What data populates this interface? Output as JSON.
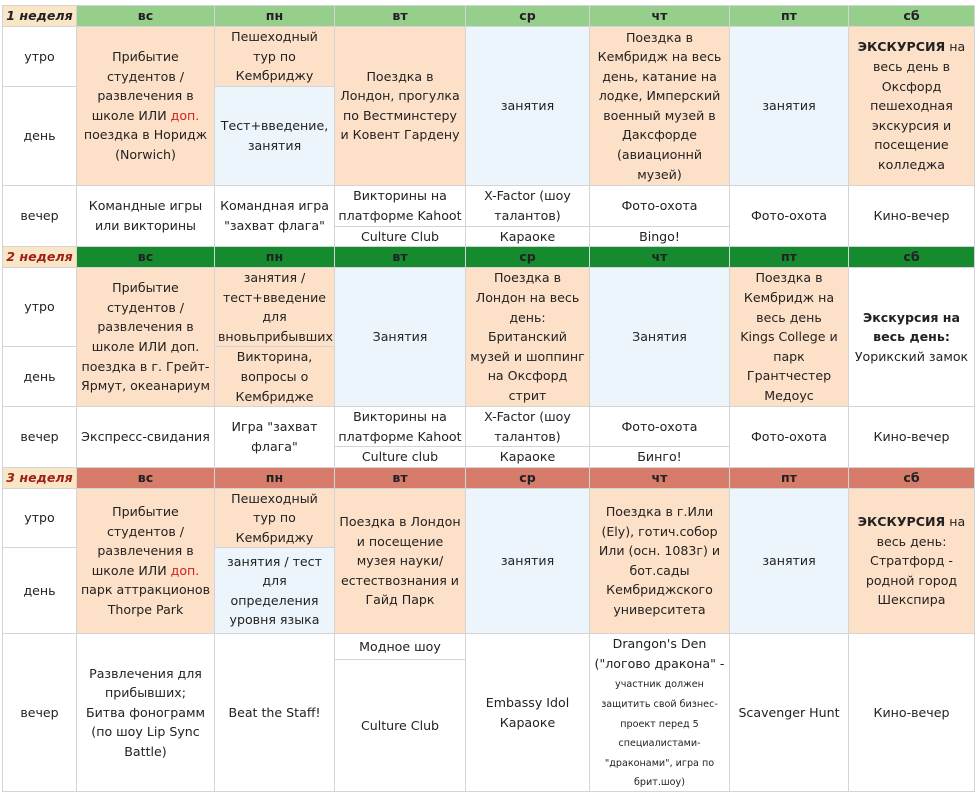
{
  "days": [
    "вс",
    "пн",
    "вт",
    "ср",
    "чт",
    "пт",
    "сб"
  ],
  "slots": {
    "morning": "утро",
    "day": "день",
    "evening": "вечер"
  },
  "weeks": [
    {
      "label": "1 неделя",
      "arrival_pre": "Прибытие студентов / развлечения в школе ИЛИ ",
      "arrival_red": "доп.",
      "arrival_post": " поездка в Норидж (Norwich)",
      "mon_morning": "Пешеходный тур по Кембриджу",
      "mon_day": "Тест+введение, занятия",
      "tue": "Поездка в Лондон, прогулка по Вестминстеру и Ковент Гардену",
      "wed": "занятия",
      "thu": "Поездка в Кембридж на весь день, катание на лодке, Имперский военный музей в Даксфорде (авиационнй музей)",
      "fri": "занятия",
      "sat_bold": "ЭКСКУРСИЯ",
      "sat_rest": " на весь день в Оксфорд пешеходная экскурсия и посещение колледжа",
      "ev_sun": "Командные игры или викторины",
      "ev_mon": "Командная игра \"захват флага\"",
      "ev_tue_1": "Викторины на платформе Kahoot",
      "ev_tue_2": "Culture Club",
      "ev_wed_1": "X-Factor (шоу талантов)",
      "ev_wed_2": "Караоке",
      "ev_thu_1": "Фото-охота",
      "ev_thu_2": "Bingo!",
      "ev_fri": "Фото-охота",
      "ev_sat": "Кино-вечер"
    },
    {
      "label": "2 неделя",
      "arrival": "Прибытие студентов / развлечения в школе ИЛИ доп. поездка в г. Грейт-Ярмут, океанариум",
      "mon_morning": "занятия / тест+введение для вновьприбывших",
      "mon_day": "Викторина, вопросы о Кембридже",
      "tue": "Занятия",
      "wed": "Поездка в Лондон на весь день: Британский музей и шоппинг на Оксфорд стрит",
      "thu": "Занятия",
      "fri_1": "Поездка в Кембридж на весь день",
      "fri_2": "Kings College и парк Грантчестер Медоус",
      "sat_bold": "Экскурсия на весь день:",
      "sat_rest": " Уорикский замок",
      "ev_sun": "Экспресс-свидания",
      "ev_mon": "Игра \"захват флага\"",
      "ev_tue_1": "Викторины на платформе Kahoot",
      "ev_tue_2": "Culture club",
      "ev_wed_1": "X-Factor (шоу талантов)",
      "ev_wed_2": "Караоке",
      "ev_thu_1": "Фото-охота",
      "ev_thu_2": "Бинго!",
      "ev_fri": "Фото-охота",
      "ev_sat": "Кино-вечер"
    },
    {
      "label": "3 неделя",
      "arrival_pre": "Прибытие студентов / развлечения в школе ИЛИ ",
      "arrival_red": "доп.",
      "arrival_post": " парк аттракционов Thorpe Park",
      "mon_morning": "Пешеходный тур по Кембриджу",
      "mon_day": "занятия / тест для определения уровня языка",
      "tue": "Поездка в Лондон и посещение музея науки/ естествознания и Гайд Парк",
      "wed": "занятия",
      "thu": "Поездка в г.Или (Ely), готич.собор Или (осн. 1083г) и бот.сады Кембриджского университета",
      "fri": "занятия",
      "sat_bold": "ЭКСКУРСИЯ",
      "sat_rest": " на весь день: Стратфорд - родной город Шекспира",
      "ev_sun_1": "Развлечения для прибывших;",
      "ev_sun_2": "Битва фонограмм (по шоу Lip Sync Battle)",
      "ev_mon": "Beat the Staff!",
      "ev_tue_1": "Модное шоу",
      "ev_tue_2": "Culture Club",
      "ev_wed_1": "Embassy Idol",
      "ev_wed_2": "Караоке",
      "ev_thu_1": "Drangon's Den (\"логово дракона\" -",
      "ev_thu_2": "участник должен защитить свой бизнес-проект перед 5 специалистами-\"драконами\", игра по брит.шоу)",
      "ev_fri": "Scavenger Hunt",
      "ev_sat": "Кино-вечер"
    }
  ],
  "colors": {
    "week1_header": "#96ce8c",
    "week2_header": "#158a2e",
    "week3_header": "#d77b6a",
    "peach_cell": "#fde0c8",
    "blue_cell": "#ecf5fc",
    "highlight_red": "#d0231b"
  }
}
